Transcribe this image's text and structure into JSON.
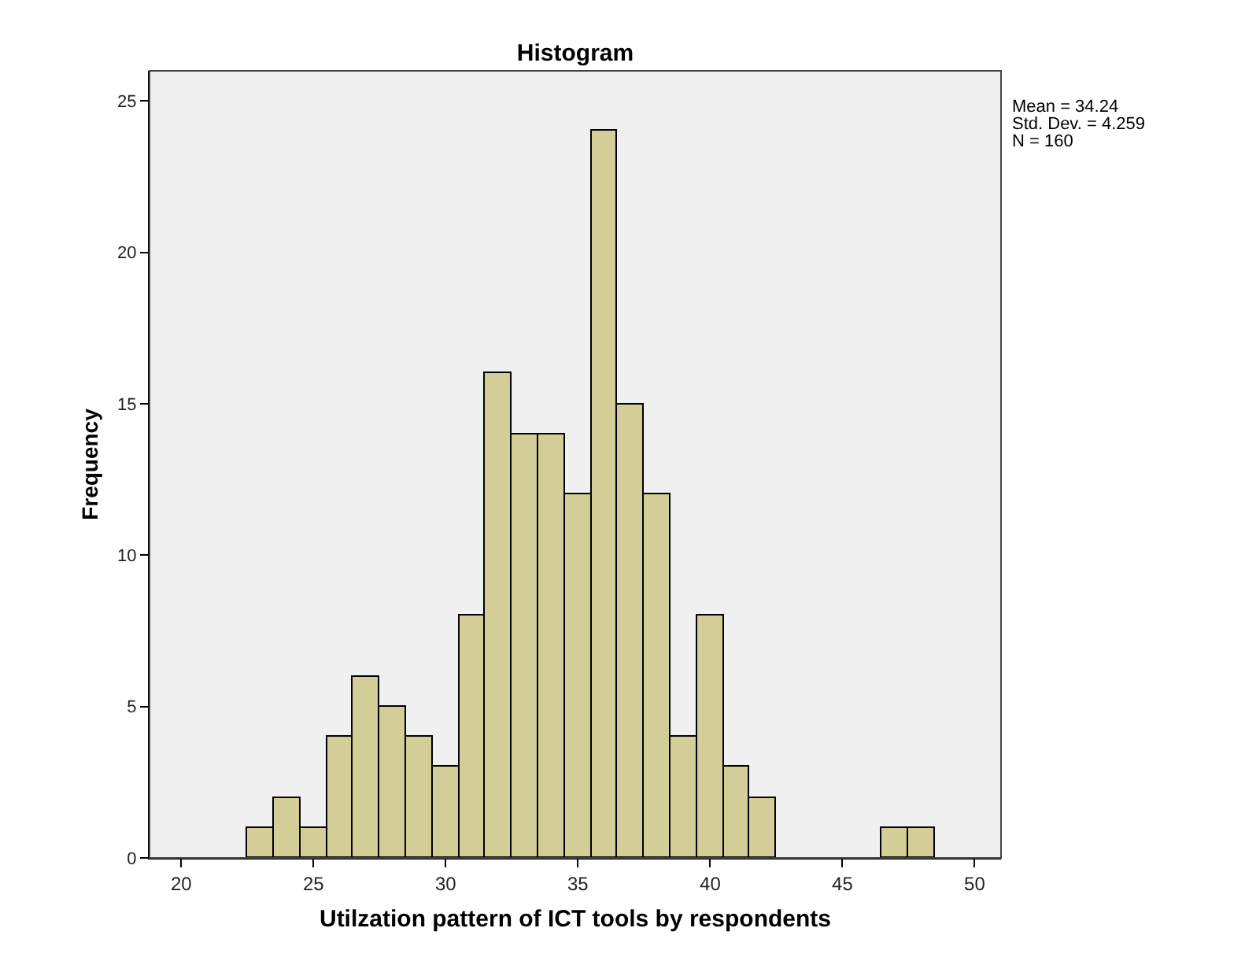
{
  "chart_data": {
    "type": "histogram",
    "title": "Histogram",
    "xlabel": "Utilzation pattern of ICT tools by respondents",
    "ylabel": "Frequency",
    "bins": [
      22.5,
      23.5,
      24.5,
      25.5,
      26.5,
      27.5,
      28.5,
      29.5,
      30.5,
      31.5,
      32.5,
      33.5,
      34.5,
      35.5,
      36.5,
      37.5,
      38.5,
      39.5,
      40.5,
      41.5,
      42.5,
      43.5,
      44.5,
      45.5,
      46.5,
      47.5,
      48.5
    ],
    "values": [
      1,
      2,
      1,
      4,
      6,
      5,
      4,
      3,
      8,
      16,
      14,
      14,
      12,
      24,
      15,
      12,
      4,
      8,
      3,
      2,
      0,
      0,
      0,
      0,
      1,
      1
    ],
    "color": "#d3ce97",
    "xlim": [
      18.8,
      51.0
    ],
    "xticks": [
      20,
      25,
      30,
      35,
      40,
      45,
      50
    ],
    "ylim": [
      0,
      26
    ],
    "yticks": [
      0,
      5,
      10,
      15,
      20,
      25
    ],
    "annotations": [
      "Mean = 34.24",
      "Std. Dev. = 4.259",
      "N = 160"
    ]
  }
}
